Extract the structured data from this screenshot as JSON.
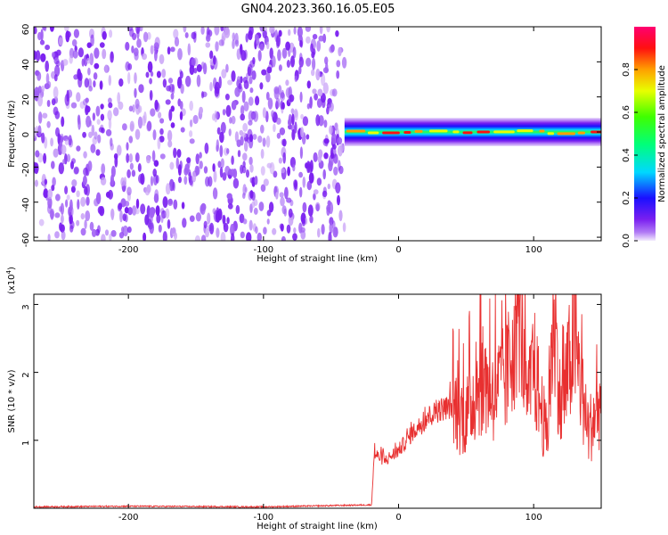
{
  "title": "GN04.2023.360.16.05.E05",
  "colors": {
    "signal_line": "#e83030",
    "noise_scatter": "#7a1ff0",
    "noise_light": "#c9a3f7"
  },
  "colorbar": {
    "label": "Normalized spectral amplitude",
    "ticks": [
      "0.0",
      "0.2",
      "0.4",
      "0.6",
      "0.8"
    ],
    "tick_values": [
      0.0,
      0.2,
      0.4,
      0.6,
      0.8
    ],
    "range": [
      0,
      1
    ],
    "colormap": "gist_rainbow (purple-blue-cyan-green-yellow-red-magenta)"
  },
  "chart_data": [
    {
      "type": "heatmap",
      "title": "GN04.2023.360.16.05.E05",
      "xlabel": "Height of straight line (km)",
      "ylabel": "Frequency (Hz)",
      "xlim": [
        -270,
        150
      ],
      "ylim": [
        -62,
        60
      ],
      "xticks": [
        "-200",
        "-100",
        "0",
        "100"
      ],
      "xtick_values": [
        -200,
        -100,
        0,
        100
      ],
      "yticks": [
        "60",
        "40",
        "20",
        "0",
        "-20",
        "-40",
        "-60"
      ],
      "ytick_values": [
        60,
        40,
        20,
        0,
        -20,
        -40,
        -60
      ],
      "regions": [
        {
          "name": "noise",
          "x_range": [
            -270,
            -40
          ],
          "freq_range": [
            -62,
            60
          ],
          "amplitude": [
            0.0,
            0.15
          ]
        },
        {
          "name": "signal",
          "x_range": [
            -40,
            150
          ],
          "center_freq": 0,
          "bandwidth": 8,
          "amplitude": [
            0.3,
            1.0
          ]
        }
      ]
    },
    {
      "type": "line",
      "xlabel": "Height of straight line (km)",
      "ylabel": "SNR (10 * v/v)",
      "y_scale_label": "(x10",
      "y_scale_exp": "4",
      "y_scale_close": ")",
      "xlim": [
        -270,
        150
      ],
      "ylim": [
        0,
        3.15
      ],
      "xticks": [
        "-200",
        "-100",
        "0",
        "100"
      ],
      "xtick_values": [
        -200,
        -100,
        0,
        100
      ],
      "yticks": [
        "1",
        "2",
        "3"
      ],
      "ytick_values": [
        1,
        2,
        3
      ],
      "series_points": [
        [
          -270,
          0.02
        ],
        [
          -200,
          0.03
        ],
        [
          -100,
          0.02
        ],
        [
          -20,
          0.05
        ],
        [
          -18,
          0.8
        ],
        [
          -10,
          0.7
        ],
        [
          0,
          0.85
        ],
        [
          10,
          1.1
        ],
        [
          20,
          1.3
        ],
        [
          30,
          1.45
        ],
        [
          40,
          1.5
        ],
        [
          50,
          1.35
        ],
        [
          60,
          1.9
        ],
        [
          70,
          1.7
        ],
        [
          80,
          1.9
        ],
        [
          90,
          3.05
        ],
        [
          95,
          1.4
        ],
        [
          100,
          2.1
        ],
        [
          110,
          1.0
        ],
        [
          115,
          2.95
        ],
        [
          120,
          1.4
        ],
        [
          130,
          2.5
        ],
        [
          140,
          1.1
        ],
        [
          150,
          1.6
        ]
      ]
    }
  ]
}
